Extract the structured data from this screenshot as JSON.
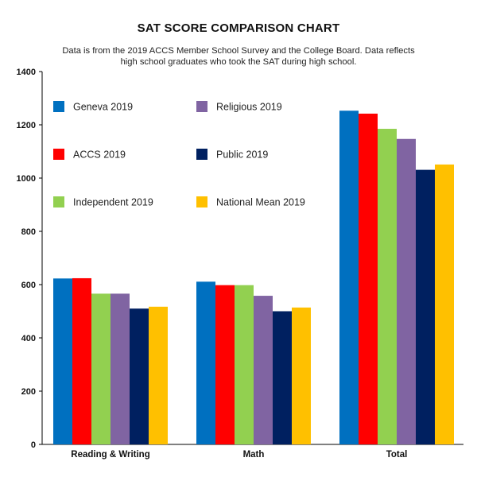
{
  "chart_data": {
    "type": "bar",
    "title": "SAT SCORE COMPARISON CHART",
    "subtitle": "Data is from the 2019 ACCS Member School Survey and the College Board. Data reflects high school graduates who took the SAT during high school.",
    "categories": [
      "Reading & Writing",
      "Math",
      "Total"
    ],
    "series": [
      {
        "name": "Geneva 2019",
        "color": "#0070C0",
        "values": [
          623,
          611,
          1253
        ]
      },
      {
        "name": "ACCS 2019",
        "color": "#FF0000",
        "values": [
          624,
          598,
          1242
        ]
      },
      {
        "name": "Independent 2019",
        "color": "#92D050",
        "values": [
          566,
          598,
          1185
        ]
      },
      {
        "name": "Religious 2019",
        "color": "#8064A2",
        "values": [
          566,
          558,
          1147
        ]
      },
      {
        "name": "Public 2019",
        "color": "#002060",
        "values": [
          510,
          500,
          1031
        ]
      },
      {
        "name": "National Mean 2019",
        "color": "#FFC000",
        "values": [
          517,
          514,
          1051
        ]
      }
    ],
    "ylim": [
      0,
      1400
    ],
    "yticks": [
      0,
      200,
      400,
      600,
      800,
      1000,
      1200,
      1400
    ],
    "xlabel": "",
    "ylabel": "",
    "grid": false,
    "legend_position": "top-left"
  }
}
